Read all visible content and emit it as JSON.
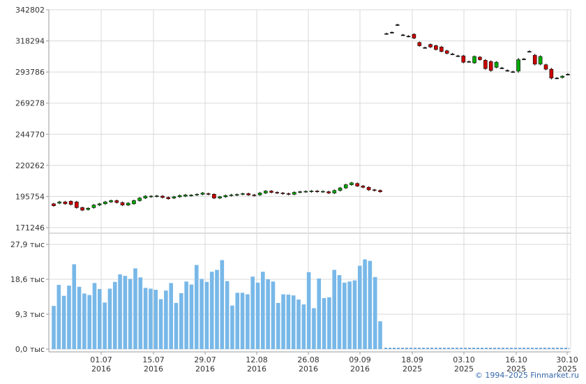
{
  "copyright": "© 1994–2025 Finmarket.ru",
  "colors": {
    "up": "#00aa00",
    "down": "#cc0000",
    "grid": "#d8d8d8",
    "volume": "#78b8e8",
    "volume_dashed": "#6fa8dc"
  },
  "chart_data": [
    {
      "type": "candlestick",
      "title": "",
      "y_ticks": [
        "342802",
        "318294",
        "293786",
        "269278",
        "244770",
        "220262",
        "195754",
        "171246"
      ],
      "ylim": [
        171246,
        342802
      ],
      "x_ticks": [
        {
          "date": "01.07",
          "year": "2016"
        },
        {
          "date": "15.07",
          "year": "2016"
        },
        {
          "date": "29.07",
          "year": "2016"
        },
        {
          "date": "12.08",
          "year": "2016"
        },
        {
          "date": "26.08",
          "year": "2016"
        },
        {
          "date": "09.09",
          "year": "2016"
        },
        {
          "date": "18.09",
          "year": "2025"
        },
        {
          "date": "03.10",
          "year": "2025"
        },
        {
          "date": "16.10",
          "year": "2025"
        },
        {
          "date": "30.10",
          "year": "2025"
        }
      ],
      "candles_2016": [
        [
          190000,
          188500
        ],
        [
          190500,
          191500
        ],
        [
          191500,
          190000
        ],
        [
          192000,
          189500
        ],
        [
          191500,
          187000
        ],
        [
          187000,
          185000
        ],
        [
          185500,
          186500
        ],
        [
          187000,
          189000
        ],
        [
          189000,
          190000
        ],
        [
          190000,
          191500
        ],
        [
          191500,
          192500
        ],
        [
          192500,
          191000
        ],
        [
          191000,
          189000
        ],
        [
          189000,
          190500
        ],
        [
          190000,
          192500
        ],
        [
          192500,
          194500
        ],
        [
          194500,
          196000
        ],
        [
          195500,
          196000
        ],
        [
          195800,
          196200
        ],
        [
          196000,
          195000
        ],
        [
          195000,
          194000
        ],
        [
          194500,
          195500
        ],
        [
          195500,
          196500
        ],
        [
          196000,
          197000
        ],
        [
          196500,
          196800
        ],
        [
          197000,
          197500
        ],
        [
          197500,
          198500
        ],
        [
          198000,
          197500
        ],
        [
          197500,
          194500
        ],
        [
          194500,
          195500
        ],
        [
          195500,
          196500
        ],
        [
          196500,
          197000
        ],
        [
          196800,
          197300
        ],
        [
          197500,
          198000
        ],
        [
          198000,
          197000
        ],
        [
          197000,
          196500
        ],
        [
          197000,
          198500
        ],
        [
          198500,
          200000
        ],
        [
          200000,
          199000
        ],
        [
          199000,
          198500
        ],
        [
          198500,
          198000
        ],
        [
          198000,
          197500
        ],
        [
          197500,
          199000
        ],
        [
          199000,
          199500
        ],
        [
          199500,
          199800
        ],
        [
          199500,
          200000
        ],
        [
          200000,
          199500
        ],
        [
          199500,
          199800
        ],
        [
          199500,
          198500
        ],
        [
          198500,
          200500
        ],
        [
          200500,
          202500
        ],
        [
          202500,
          205000
        ],
        [
          205000,
          206500
        ],
        [
          206000,
          204000
        ],
        [
          204000,
          203000
        ],
        [
          203000,
          201000
        ],
        [
          201000,
          200500
        ],
        [
          200500,
          199500
        ]
      ],
      "candles_2025": [
        [
          324000,
          324000
        ],
        [
          325000,
          325000
        ],
        [
          331000,
          331000
        ],
        [
          323000,
          323000
        ],
        [
          322000,
          322000
        ],
        [
          323500,
          320500
        ],
        [
          317000,
          314500
        ],
        [
          313000,
          313000
        ],
        [
          315500,
          313500
        ],
        [
          314500,
          311500
        ],
        [
          313500,
          310000
        ],
        [
          310500,
          308500
        ],
        [
          308000,
          308000
        ],
        [
          306500,
          306500
        ],
        [
          306500,
          301500
        ],
        [
          302000,
          302000
        ],
        [
          301000,
          306000
        ],
        [
          305500,
          303500
        ],
        [
          303000,
          296500
        ],
        [
          302000,
          295000
        ],
        [
          297500,
          301500
        ],
        [
          297000,
          297000
        ],
        [
          295000,
          295000
        ],
        [
          294000,
          294000
        ],
        [
          294500,
          303500
        ],
        [
          304000,
          304000
        ],
        [
          310000,
          310000
        ],
        [
          307000,
          300000
        ],
        [
          300000,
          306000
        ],
        [
          299500,
          296000
        ],
        [
          296000,
          289000
        ],
        [
          289000,
          289000
        ],
        [
          289500,
          290500
        ],
        [
          292000,
          292000
        ]
      ]
    },
    {
      "type": "bar",
      "title": "",
      "y_ticks": [
        "27,9 тыс",
        "18,6 тыс",
        "9,3 тыс",
        "0,0 тыс"
      ],
      "ylim": [
        0,
        27.9
      ],
      "unit": "тыс",
      "values_2016": [
        11.5,
        17.1,
        14.2,
        16.9,
        22.6,
        16.6,
        14.8,
        14.4,
        17.6,
        16.0,
        12.4,
        16.1,
        17.9,
        19.9,
        19.5,
        18.7,
        21.5,
        19.1,
        16.3,
        16.1,
        15.8,
        13.3,
        15.6,
        17.6,
        12.3,
        14.9,
        18.0,
        17.2,
        22.4,
        18.7,
        17.9,
        20.6,
        21.1,
        23.7,
        18.1,
        11.6,
        15.0,
        15.0,
        14.6,
        19.3,
        17.7,
        20.6,
        18.6,
        18.0,
        12.3,
        14.6,
        14.5,
        14.3,
        13.2,
        11.9,
        20.5,
        10.9,
        18.8,
        13.6,
        13.8,
        21.1,
        19.7,
        17.7,
        18.0,
        18.3,
        22.2,
        23.9,
        23.5,
        19.2,
        7.4
      ],
      "values_2025": 0
    }
  ]
}
